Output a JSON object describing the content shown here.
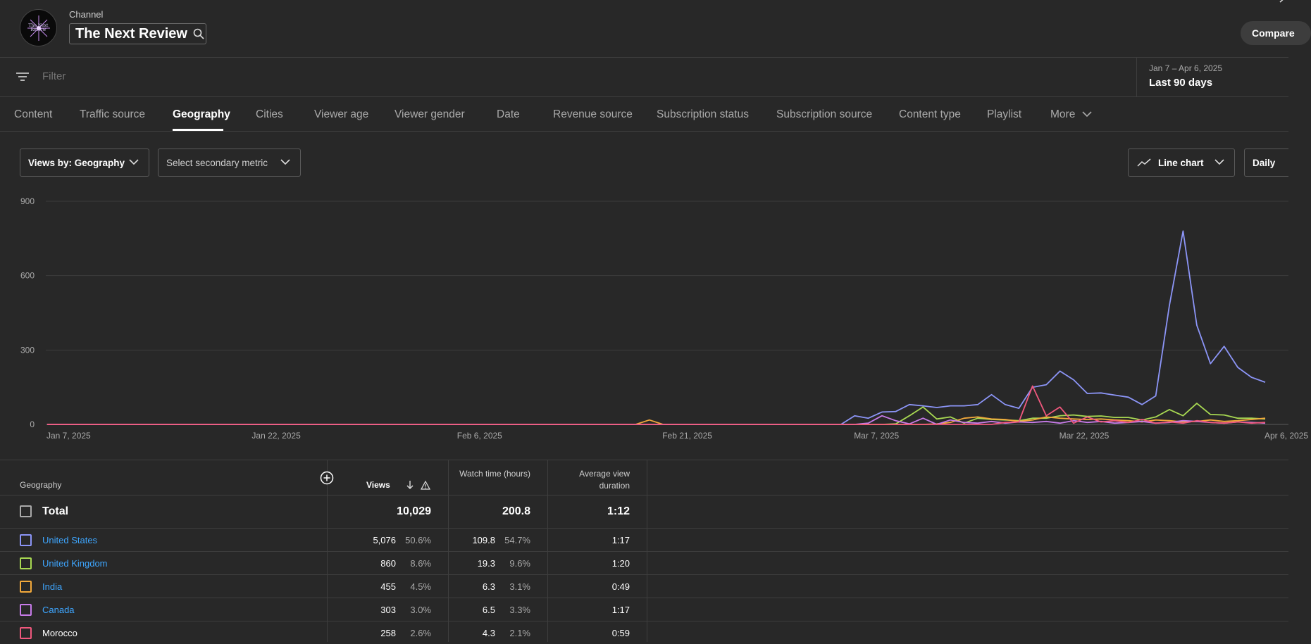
{
  "header": {
    "channel_label": "Channel",
    "channel_name": "The Next Review",
    "avatar_text": "The Next Review",
    "compare_label": "Compare"
  },
  "filter": {
    "placeholder": "Filter"
  },
  "date_range": {
    "range": "Jan 7 – Apr 6, 2025",
    "label": "Last 90 days"
  },
  "tabs": [
    {
      "label": "Content"
    },
    {
      "label": "Traffic source"
    },
    {
      "label": "Geography",
      "active": true
    },
    {
      "label": "Cities"
    },
    {
      "label": "Viewer age"
    },
    {
      "label": "Viewer gender"
    },
    {
      "label": "Date"
    },
    {
      "label": "Revenue source"
    },
    {
      "label": "Subscription status"
    },
    {
      "label": "Subscription source"
    },
    {
      "label": "Content type"
    },
    {
      "label": "Playlist"
    },
    {
      "label": "More"
    }
  ],
  "controls": {
    "primary_metric": "Views by: Geography",
    "secondary_metric": "Select secondary metric",
    "chart_type": "Line chart",
    "granularity": "Daily"
  },
  "chart_data": {
    "type": "line",
    "x_tick_labels": [
      "Jan 7, 2025",
      "Jan 22, 2025",
      "Feb 6, 2025",
      "Feb 21, 2025",
      "Mar 7, 2025",
      "Mar 22, 2025",
      "Apr 6, 2025"
    ],
    "y_ticks": [
      0,
      300,
      600,
      900
    ],
    "ylim": [
      0,
      900
    ],
    "x_start": "2025-01-07",
    "x_end": "2025-04-06",
    "grid": true,
    "series": [
      {
        "name": "United States",
        "color": "#8c95f7",
        "points": [
          [
            "2025-01-07",
            0
          ],
          [
            "2025-03-06",
            0
          ],
          [
            "2025-03-07",
            35
          ],
          [
            "2025-03-08",
            25
          ],
          [
            "2025-03-09",
            50
          ],
          [
            "2025-03-10",
            52
          ],
          [
            "2025-03-11",
            80
          ],
          [
            "2025-03-12",
            75
          ],
          [
            "2025-03-13",
            68
          ],
          [
            "2025-03-14",
            75
          ],
          [
            "2025-03-15",
            75
          ],
          [
            "2025-03-16",
            80
          ],
          [
            "2025-03-17",
            120
          ],
          [
            "2025-03-18",
            80
          ],
          [
            "2025-03-19",
            65
          ],
          [
            "2025-03-20",
            150
          ],
          [
            "2025-03-21",
            160
          ],
          [
            "2025-03-22",
            215
          ],
          [
            "2025-03-23",
            180
          ],
          [
            "2025-03-24",
            125
          ],
          [
            "2025-03-25",
            127
          ],
          [
            "2025-03-26",
            118
          ],
          [
            "2025-03-27",
            110
          ],
          [
            "2025-03-28",
            80
          ],
          [
            "2025-03-29",
            115
          ],
          [
            "2025-03-30",
            480
          ],
          [
            "2025-03-31",
            780
          ],
          [
            "2025-04-01",
            400
          ],
          [
            "2025-04-02",
            245
          ],
          [
            "2025-04-03",
            315
          ],
          [
            "2025-04-04",
            230
          ],
          [
            "2025-04-05",
            190
          ],
          [
            "2025-04-06",
            170
          ]
        ]
      },
      {
        "name": "United Kingdom",
        "color": "#a8d952",
        "points": [
          [
            "2025-01-07",
            0
          ],
          [
            "2025-03-09",
            0
          ],
          [
            "2025-03-10",
            2
          ],
          [
            "2025-03-11",
            35
          ],
          [
            "2025-03-12",
            70
          ],
          [
            "2025-03-13",
            22
          ],
          [
            "2025-03-14",
            30
          ],
          [
            "2025-03-15",
            5
          ],
          [
            "2025-03-16",
            25
          ],
          [
            "2025-03-17",
            20
          ],
          [
            "2025-03-18",
            18
          ],
          [
            "2025-03-19",
            15
          ],
          [
            "2025-03-20",
            25
          ],
          [
            "2025-03-21",
            25
          ],
          [
            "2025-03-22",
            35
          ],
          [
            "2025-03-23",
            38
          ],
          [
            "2025-03-24",
            32
          ],
          [
            "2025-03-25",
            34
          ],
          [
            "2025-03-26",
            28
          ],
          [
            "2025-03-27",
            28
          ],
          [
            "2025-03-28",
            18
          ],
          [
            "2025-03-29",
            30
          ],
          [
            "2025-03-30",
            60
          ],
          [
            "2025-03-31",
            35
          ],
          [
            "2025-04-01",
            85
          ],
          [
            "2025-04-02",
            40
          ],
          [
            "2025-04-03",
            38
          ],
          [
            "2025-04-04",
            25
          ],
          [
            "2025-04-05",
            25
          ],
          [
            "2025-04-06",
            22
          ]
        ]
      },
      {
        "name": "India",
        "color": "#f3a93b",
        "points": [
          [
            "2025-01-07",
            0
          ],
          [
            "2025-02-19",
            0
          ],
          [
            "2025-02-20",
            18
          ],
          [
            "2025-02-21",
            0
          ],
          [
            "2025-03-12",
            0
          ],
          [
            "2025-03-13",
            2
          ],
          [
            "2025-03-14",
            8
          ],
          [
            "2025-03-15",
            25
          ],
          [
            "2025-03-16",
            30
          ],
          [
            "2025-03-17",
            22
          ],
          [
            "2025-03-18",
            20
          ],
          [
            "2025-03-19",
            12
          ],
          [
            "2025-03-20",
            18
          ],
          [
            "2025-03-21",
            30
          ],
          [
            "2025-03-22",
            25
          ],
          [
            "2025-03-23",
            22
          ],
          [
            "2025-03-24",
            20
          ],
          [
            "2025-03-25",
            22
          ],
          [
            "2025-03-26",
            18
          ],
          [
            "2025-03-27",
            15
          ],
          [
            "2025-03-28",
            10
          ],
          [
            "2025-03-29",
            18
          ],
          [
            "2025-03-30",
            15
          ],
          [
            "2025-03-31",
            10
          ],
          [
            "2025-04-01",
            12
          ],
          [
            "2025-04-02",
            18
          ],
          [
            "2025-04-03",
            12
          ],
          [
            "2025-04-04",
            15
          ],
          [
            "2025-04-05",
            20
          ],
          [
            "2025-04-06",
            25
          ]
        ]
      },
      {
        "name": "Canada",
        "color": "#c77be8",
        "points": [
          [
            "2025-01-07",
            0
          ],
          [
            "2025-03-07",
            0
          ],
          [
            "2025-03-08",
            5
          ],
          [
            "2025-03-09",
            35
          ],
          [
            "2025-03-10",
            15
          ],
          [
            "2025-03-11",
            2
          ],
          [
            "2025-03-12",
            25
          ],
          [
            "2025-03-13",
            0
          ],
          [
            "2025-03-14",
            18
          ],
          [
            "2025-03-15",
            8
          ],
          [
            "2025-03-16",
            5
          ],
          [
            "2025-03-17",
            12
          ],
          [
            "2025-03-18",
            5
          ],
          [
            "2025-03-19",
            10
          ],
          [
            "2025-03-20",
            8
          ],
          [
            "2025-03-21",
            12
          ],
          [
            "2025-03-22",
            5
          ],
          [
            "2025-03-23",
            15
          ],
          [
            "2025-03-24",
            8
          ],
          [
            "2025-03-25",
            12
          ],
          [
            "2025-03-26",
            5
          ],
          [
            "2025-03-27",
            8
          ],
          [
            "2025-03-28",
            12
          ],
          [
            "2025-03-29",
            5
          ],
          [
            "2025-03-30",
            8
          ],
          [
            "2025-03-31",
            15
          ],
          [
            "2025-04-01",
            12
          ],
          [
            "2025-04-02",
            8
          ],
          [
            "2025-04-03",
            5
          ],
          [
            "2025-04-04",
            10
          ],
          [
            "2025-04-05",
            8
          ],
          [
            "2025-04-06",
            5
          ]
        ]
      },
      {
        "name": "Morocco",
        "color": "#f0587d",
        "points": [
          [
            "2025-01-07",
            0
          ],
          [
            "2025-03-17",
            0
          ],
          [
            "2025-03-18",
            8
          ],
          [
            "2025-03-19",
            10
          ],
          [
            "2025-03-20",
            155
          ],
          [
            "2025-03-21",
            35
          ],
          [
            "2025-03-22",
            70
          ],
          [
            "2025-03-23",
            5
          ],
          [
            "2025-03-24",
            30
          ],
          [
            "2025-03-25",
            10
          ],
          [
            "2025-03-26",
            15
          ],
          [
            "2025-03-27",
            8
          ],
          [
            "2025-03-28",
            20
          ],
          [
            "2025-03-29",
            5
          ],
          [
            "2025-03-30",
            10
          ],
          [
            "2025-03-31",
            5
          ],
          [
            "2025-04-01",
            15
          ],
          [
            "2025-04-02",
            8
          ],
          [
            "2025-04-03",
            5
          ],
          [
            "2025-04-04",
            10
          ],
          [
            "2025-04-05",
            5
          ],
          [
            "2025-04-06",
            8
          ]
        ]
      }
    ]
  },
  "table": {
    "columns": {
      "geography": "Geography",
      "views": "Views",
      "watch_time": "Watch time (hours)",
      "avg_duration": "Average view duration"
    },
    "total": {
      "label": "Total",
      "views": "10,029",
      "watch_time": "200.8",
      "avg_duration": "1:12"
    },
    "rows": [
      {
        "name": "United States",
        "color": "#8c95f7",
        "link": true,
        "views": "5,076",
        "views_pct": "50.6%",
        "watch_time": "109.8",
        "watch_pct": "54.7%",
        "avg_duration": "1:17"
      },
      {
        "name": "United Kingdom",
        "color": "#a8d952",
        "link": true,
        "views": "860",
        "views_pct": "8.6%",
        "watch_time": "19.3",
        "watch_pct": "9.6%",
        "avg_duration": "1:20"
      },
      {
        "name": "India",
        "color": "#f3a93b",
        "link": true,
        "views": "455",
        "views_pct": "4.5%",
        "watch_time": "6.3",
        "watch_pct": "3.1%",
        "avg_duration": "0:49"
      },
      {
        "name": "Canada",
        "color": "#c77be8",
        "link": true,
        "views": "303",
        "views_pct": "3.0%",
        "watch_time": "6.5",
        "watch_pct": "3.3%",
        "avg_duration": "1:17"
      },
      {
        "name": "Morocco",
        "color": "#f0587d",
        "link": false,
        "views": "258",
        "views_pct": "2.6%",
        "watch_time": "4.3",
        "watch_pct": "2.1%",
        "avg_duration": "0:59"
      }
    ]
  }
}
